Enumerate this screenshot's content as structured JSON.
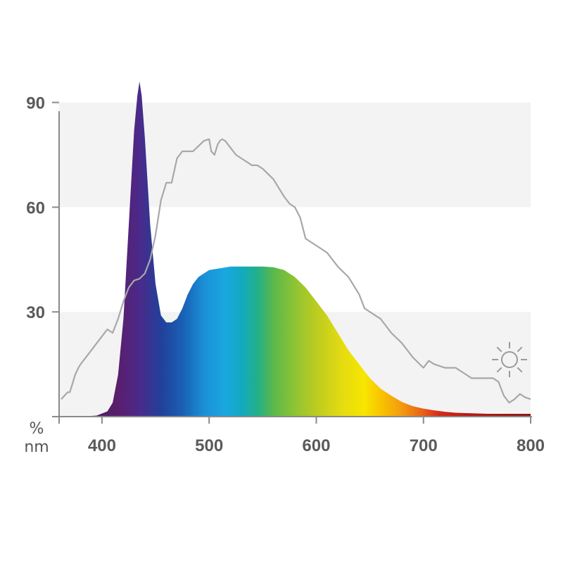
{
  "chart_data": {
    "type": "area",
    "title": "",
    "xlabel": "nm",
    "ylabel": "%",
    "xlim": [
      360,
      800
    ],
    "ylim": [
      0,
      100
    ],
    "grid": "alternating horizontal bands",
    "x_ticks": [
      400,
      500,
      600,
      700,
      800
    ],
    "y_ticks": [
      30,
      60,
      90
    ],
    "x_tick_labels": [
      "400",
      "500",
      "600",
      "700",
      "800"
    ],
    "y_tick_labels": [
      "30",
      "60",
      "90"
    ],
    "series": [
      {
        "style": "filled area, visible-spectrum gradient",
        "x": [
          380,
          395,
          405,
          410,
          415,
          420,
          425,
          430,
          433,
          435,
          437,
          440,
          445,
          450,
          455,
          460,
          465,
          470,
          475,
          480,
          485,
          490,
          495,
          500,
          510,
          520,
          530,
          540,
          550,
          560,
          570,
          580,
          590,
          600,
          610,
          620,
          630,
          640,
          650,
          660,
          670,
          680,
          690,
          700,
          710,
          720,
          730,
          740,
          750,
          760,
          770,
          780,
          790,
          800
        ],
        "values": [
          0,
          0.3,
          1.5,
          4,
          12,
          28,
          55,
          82,
          92,
          96,
          92,
          80,
          55,
          38,
          29,
          27,
          27,
          28,
          31,
          35,
          38,
          40,
          41,
          42,
          42.5,
          43,
          43,
          43,
          43,
          42.8,
          42,
          40,
          37,
          33,
          29,
          24,
          19,
          15,
          11,
          8,
          6,
          4.2,
          3,
          2.3,
          1.8,
          1.4,
          1.1,
          1,
          0.9,
          0.8,
          0.8,
          0.8,
          0.8,
          0.8
        ]
      },
      {
        "style": "grey line",
        "x": [
          362,
          365,
          368,
          370,
          372,
          375,
          378,
          380,
          385,
          390,
          395,
          400,
          405,
          410,
          415,
          420,
          425,
          430,
          435,
          440,
          445,
          450,
          455,
          460,
          465,
          470,
          475,
          480,
          485,
          490,
          495,
          500,
          502,
          505,
          508,
          510,
          512,
          515,
          520,
          525,
          530,
          535,
          540,
          545,
          550,
          560,
          570,
          575,
          580,
          585,
          590,
          595,
          600,
          610,
          620,
          630,
          640,
          645,
          650,
          655,
          660,
          665,
          670,
          680,
          690,
          700,
          705,
          710,
          720,
          730,
          740,
          745,
          750,
          760,
          765,
          770,
          775,
          780,
          785,
          790,
          795,
          800
        ],
        "values": [
          5,
          6,
          7,
          7,
          9,
          12,
          14,
          15,
          17,
          19,
          21,
          23,
          25,
          24,
          28,
          33,
          37,
          39,
          39.5,
          41,
          45,
          52,
          62,
          67,
          67,
          74,
          76,
          76,
          76,
          77.5,
          79,
          79.5,
          76,
          75,
          78,
          79,
          79.5,
          79,
          77,
          75,
          74,
          73,
          72,
          72,
          71,
          68,
          63,
          61,
          60,
          57,
          51,
          50,
          49,
          47,
          43,
          40,
          35,
          31,
          30,
          29,
          28,
          26,
          24,
          21,
          17,
          14,
          16,
          15,
          14,
          14,
          12,
          11,
          11,
          11,
          11,
          10,
          6,
          4,
          5,
          6.5,
          5.5,
          5
        ]
      }
    ],
    "annotations": [
      "sun-icon"
    ]
  }
}
